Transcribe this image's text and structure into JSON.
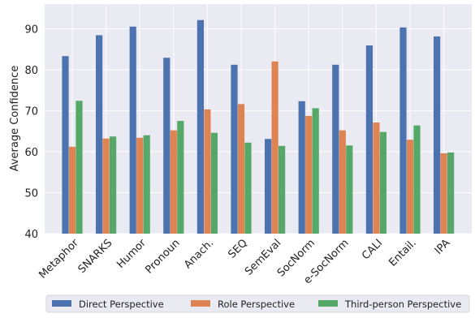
{
  "chart_data": {
    "type": "bar",
    "title": "",
    "xlabel": "",
    "ylabel": "Average Confidence",
    "ylim": [
      40,
      96
    ],
    "yticks": [
      40,
      50,
      60,
      70,
      80,
      90
    ],
    "grid": true,
    "legend_position": "bottom",
    "background_color": "#eaeaf2",
    "grid_color": "#ffffff",
    "categories": [
      "Metaphor",
      "SNARKS",
      "Humor",
      "Pronoun",
      "Anach.",
      "SEQ",
      "SemEval",
      "SocNorm",
      "e-SocNorm",
      "CALI",
      "Entail.",
      "IPA"
    ],
    "series": [
      {
        "name": "Direct Perspective",
        "color": "#4c72b0",
        "values": [
          83.3,
          88.4,
          90.5,
          82.9,
          92.1,
          81.2,
          63.1,
          72.3,
          81.2,
          85.9,
          90.3,
          88.1
        ]
      },
      {
        "name": "Role Perspective",
        "color": "#dd8452",
        "values": [
          61.2,
          63.2,
          63.4,
          65.2,
          70.3,
          71.6,
          82.0,
          68.7,
          65.2,
          67.1,
          62.9,
          59.6
        ]
      },
      {
        "name": "Third-person Perspective",
        "color": "#55a868",
        "values": [
          72.4,
          63.7,
          64.0,
          67.5,
          64.6,
          62.2,
          61.4,
          70.6,
          61.5,
          64.8,
          66.4,
          59.8
        ]
      }
    ]
  }
}
